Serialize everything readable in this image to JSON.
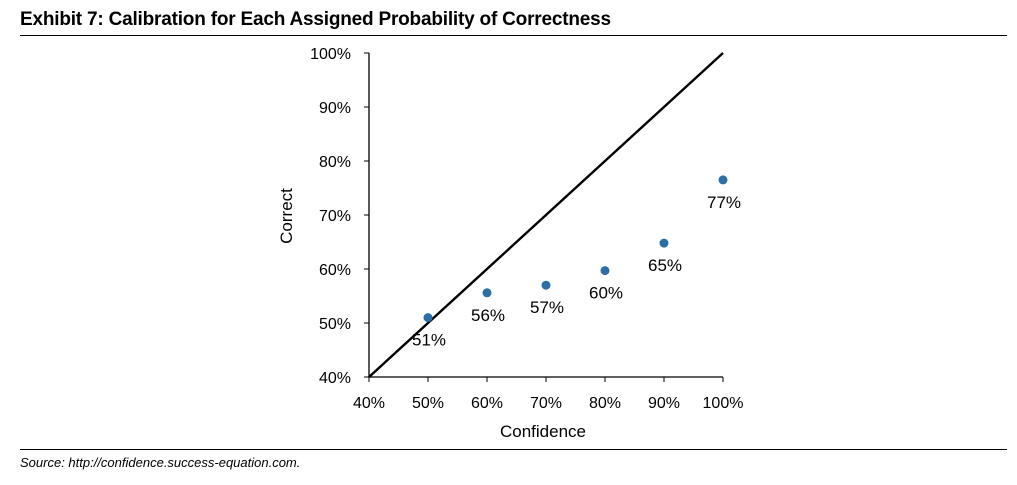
{
  "page": {
    "title": "Exhibit 7: Calibration for Each Assigned Probability of Correctness",
    "source": "Source: http://confidence.success-equation.com."
  },
  "chart_data": {
    "type": "scatter",
    "xlabel": "Confidence",
    "ylabel": "Correct",
    "xlim": [
      0.4,
      1.0
    ],
    "ylim": [
      0.4,
      1.0
    ],
    "x_ticks": [
      0.4,
      0.5,
      0.6,
      0.7,
      0.8,
      0.9,
      1.0
    ],
    "x_tick_labels": [
      "40%",
      "50%",
      "60%",
      "70%",
      "80%",
      "90%",
      "100%"
    ],
    "y_ticks": [
      0.4,
      0.5,
      0.6,
      0.7,
      0.8,
      0.9,
      1.0
    ],
    "y_tick_labels": [
      "40%",
      "50%",
      "60%",
      "70%",
      "80%",
      "90%",
      "100%"
    ],
    "grid": false,
    "reference_line": {
      "from": [
        0.4,
        0.4
      ],
      "to": [
        1.0,
        1.0
      ],
      "color": "#000000"
    },
    "series": [
      {
        "color": "#2e6ea6",
        "x": [
          0.5,
          0.6,
          0.7,
          0.8,
          0.9,
          1.0
        ],
        "y": [
          0.51,
          0.556,
          0.57,
          0.597,
          0.648,
          0.765
        ],
        "labels": [
          "51%",
          "56%",
          "57%",
          "60%",
          "65%",
          "77%"
        ]
      }
    ]
  }
}
